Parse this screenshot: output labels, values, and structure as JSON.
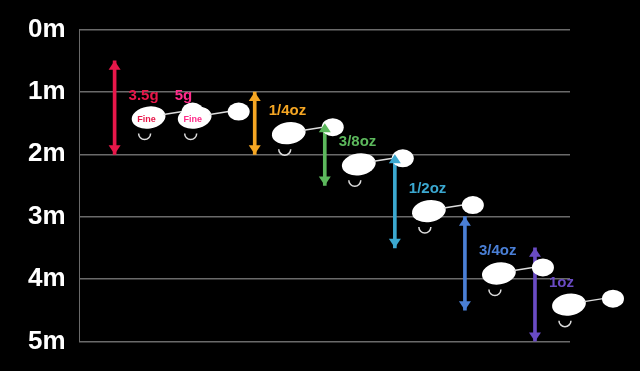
{
  "chart_data": {
    "type": "bar",
    "categories": [
      "3.5g",
      "5g",
      "1/4oz",
      "3/8oz",
      "1/2oz",
      "3/4oz",
      "1oz"
    ],
    "values": [
      [
        0.5,
        2
      ],
      null,
      [
        1,
        2
      ],
      [
        1.5,
        2.5
      ],
      [
        2,
        3.5
      ],
      [
        3,
        4.5
      ],
      [
        3.5,
        5
      ]
    ],
    "colors": [
      "#e8174a",
      "#ff2b8a",
      "#f5a623",
      "#5cb85c",
      "#3ba8d0",
      "#4a7fd6",
      "#6a4bc4"
    ],
    "annotations": [
      "Fine",
      "Fine",
      null,
      null,
      null,
      null,
      null
    ],
    "ylim": [
      0,
      5
    ],
    "yticks": [
      {
        "value": 0,
        "label": "0m"
      },
      {
        "value": 1,
        "label": "1m"
      },
      {
        "value": 2,
        "label": "2m"
      },
      {
        "value": 3,
        "label": "3m"
      },
      {
        "value": 4,
        "label": "4m"
      },
      {
        "value": 5,
        "label": "5m"
      }
    ],
    "grid": true,
    "tick_labels": "y"
  }
}
